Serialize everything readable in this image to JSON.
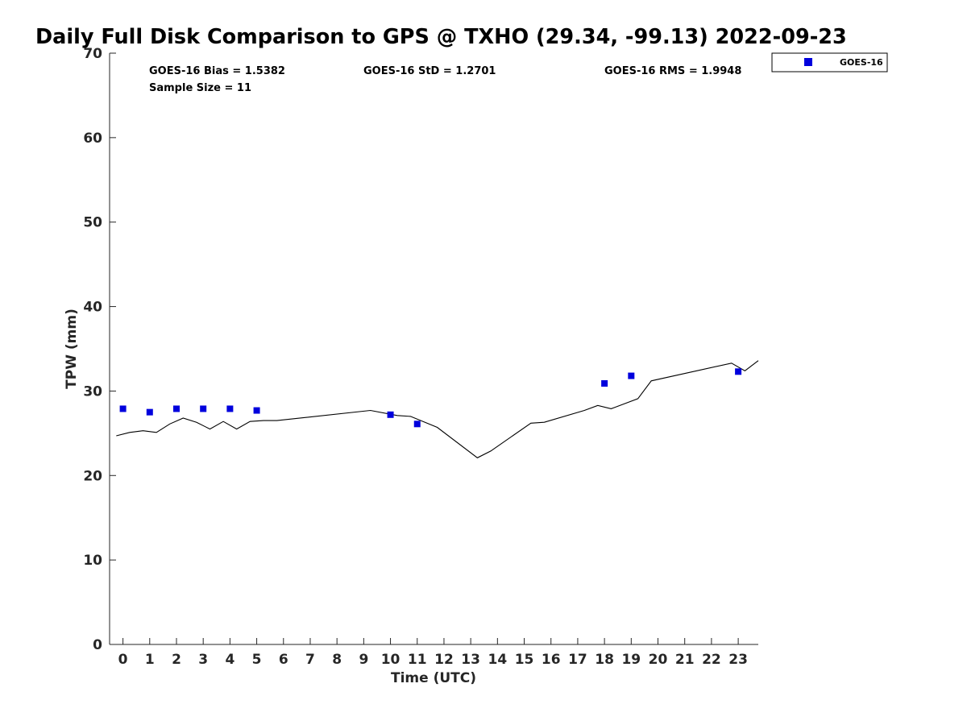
{
  "chart_data": {
    "type": "scatter",
    "title": "Daily Full Disk Comparison to GPS @ TXHO (29.34, -99.13) 2022-09-23",
    "xlabel": "Time (UTC)",
    "ylabel": "TPW (mm)",
    "xlim": [
      -0.5,
      23.75
    ],
    "ylim": [
      0,
      70
    ],
    "xticks": [
      0,
      1,
      2,
      3,
      4,
      5,
      6,
      7,
      8,
      9,
      10,
      11,
      12,
      13,
      14,
      15,
      16,
      17,
      18,
      19,
      20,
      21,
      22,
      23
    ],
    "yticks": [
      0,
      10,
      20,
      30,
      40,
      50,
      60,
      70
    ],
    "grid": false,
    "legend": {
      "position": "top-right-outside",
      "entries": [
        "GOES-16"
      ]
    },
    "stats": {
      "bias": "GOES-16 Bias = 1.5382",
      "std": "GOES-16 StD = 1.2701",
      "rms": "GOES-16 RMS = 1.9948",
      "sample_size": "Sample Size = 11"
    },
    "series": [
      {
        "name": "GOES-16",
        "kind": "scatter",
        "color": "#0000dd",
        "x": [
          0,
          1,
          2,
          3,
          4,
          5,
          10,
          11,
          18,
          19,
          23
        ],
        "y": [
          27.9,
          27.5,
          27.9,
          27.9,
          27.9,
          27.7,
          27.2,
          26.1,
          30.9,
          31.8,
          32.3
        ]
      },
      {
        "kind": "line",
        "color": "#000000",
        "x": [
          -0.25,
          0.25,
          0.75,
          1.25,
          1.75,
          2.25,
          2.75,
          3.25,
          3.75,
          4.25,
          4.75,
          5.25,
          5.75,
          9.25,
          10.25,
          10.75,
          11.75,
          13.25,
          13.75,
          15.25,
          15.75,
          17.25,
          17.75,
          18.25,
          19.25,
          19.75,
          22.75,
          23.25,
          23.75
        ],
        "y": [
          24.7,
          25.1,
          25.3,
          25.1,
          26.1,
          26.8,
          26.3,
          25.5,
          26.4,
          25.5,
          26.4,
          26.5,
          26.5,
          27.7,
          27.1,
          27.0,
          25.7,
          22.1,
          22.9,
          26.2,
          26.3,
          27.7,
          28.3,
          27.9,
          29.1,
          31.2,
          33.3,
          32.4,
          33.6
        ]
      }
    ]
  }
}
